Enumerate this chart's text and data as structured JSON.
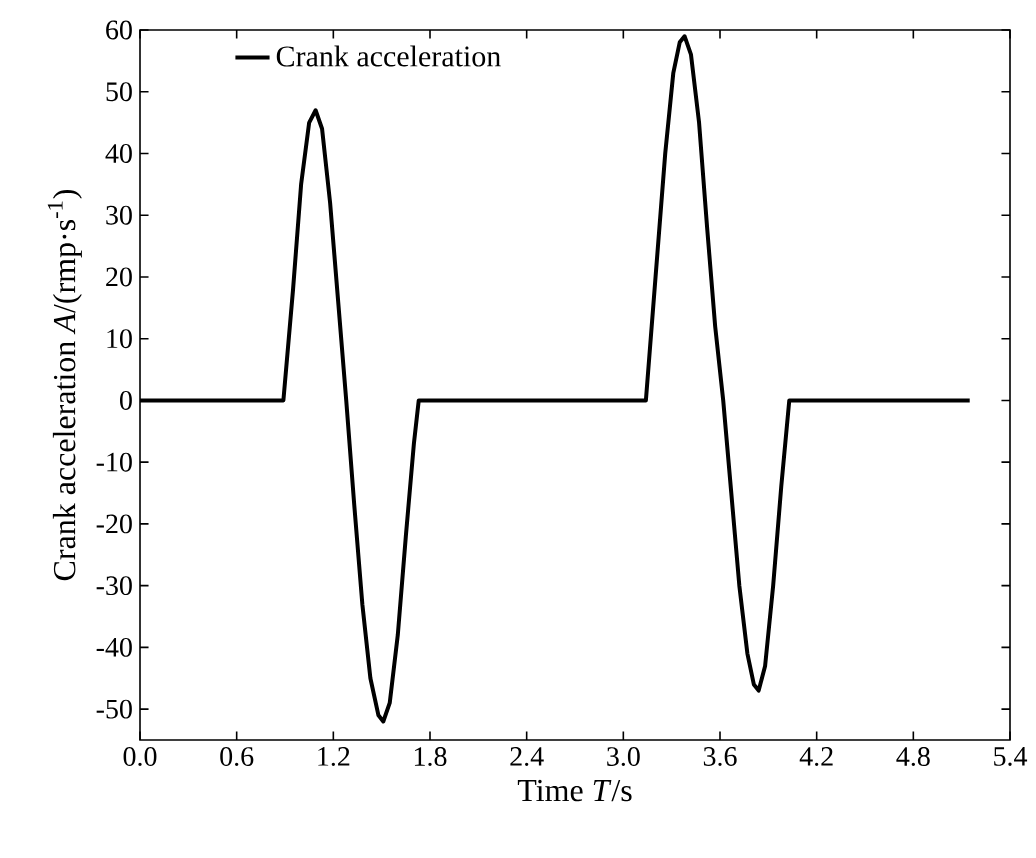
{
  "chart_data": {
    "type": "line",
    "xlabel": "Time *T*/s",
    "ylabel": "Crank acceleration  *A*/(rmp·s$^{-1}$)",
    "xlim": [
      0,
      5.4
    ],
    "ylim": [
      -55,
      60
    ],
    "xticks": [
      {
        "value": 0,
        "label": "0.0"
      },
      {
        "value": 0.6,
        "label": "0.6"
      },
      {
        "value": 1.2,
        "label": "1.2"
      },
      {
        "value": 1.8,
        "label": "1.8"
      },
      {
        "value": 2.4,
        "label": "2.4"
      },
      {
        "value": 3.0,
        "label": "3.0"
      },
      {
        "value": 3.6,
        "label": "3.6"
      },
      {
        "value": 4.2,
        "label": "4.2"
      },
      {
        "value": 4.8,
        "label": "4.8"
      },
      {
        "value": 5.4,
        "label": "5.4"
      }
    ],
    "yticks": [
      -50,
      -40,
      -30,
      -20,
      -10,
      0,
      10,
      20,
      30,
      40,
      50,
      60
    ],
    "legend": "top left",
    "grid": false,
    "marker": "none",
    "line_style": "solid",
    "series": [
      {
        "name": "Crank acceleration",
        "color": "#000000",
        "x": [
          0,
          0.89,
          0.95,
          1.0,
          1.05,
          1.09,
          1.13,
          1.18,
          1.23,
          1.28,
          1.33,
          1.38,
          1.43,
          1.48,
          1.51,
          1.55,
          1.6,
          1.65,
          1.7,
          1.73,
          3.14,
          3.2,
          3.26,
          3.31,
          3.35,
          3.38,
          3.42,
          3.47,
          3.52,
          3.57,
          3.62,
          3.67,
          3.72,
          3.77,
          3.81,
          3.84,
          3.88,
          3.93,
          3.98,
          4.03,
          5.15
        ],
        "values": [
          0,
          0,
          18,
          35,
          45,
          47,
          44,
          32,
          16,
          0,
          -17,
          -33,
          -45,
          -51,
          -52,
          -49,
          -38,
          -22,
          -7,
          0,
          0,
          20,
          40,
          53,
          58,
          59,
          56,
          45,
          28,
          12,
          0,
          -15,
          -30,
          -41,
          -46,
          -47,
          -43,
          -30,
          -14,
          0,
          0
        ]
      }
    ]
  }
}
